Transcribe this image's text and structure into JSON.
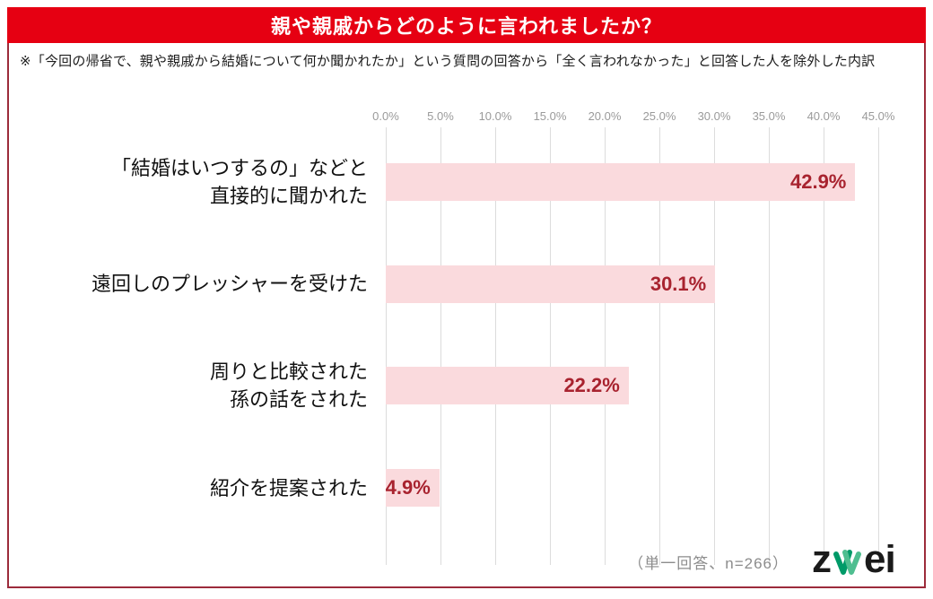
{
  "header": {
    "title": "親や親戚からどのように言われましたか？",
    "bg_color": "#e60012",
    "text_color": "#ffffff"
  },
  "subtitle": "※「今回の帰省で、親や親戚から結婚について何か聞かれたか」という質問の回答から「全く言われなかった」と回答した人を除外した内訳",
  "chart_data": {
    "type": "bar",
    "orientation": "horizontal",
    "title": "親や親戚からどのように言われましたか？",
    "categories": [
      [
        "「結婚はいつするの」などと",
        "直接的に聞かれた"
      ],
      [
        "遠回しのプレッシャーを受けた"
      ],
      [
        "周りと比較された",
        "孫の話をされた"
      ],
      [
        "紹介を提案された"
      ]
    ],
    "values": [
      42.9,
      30.1,
      22.2,
      4.9
    ],
    "value_labels": [
      "42.9%",
      "30.1%",
      "22.2%",
      "4.9%"
    ],
    "x_ticks": [
      "0.0%",
      "5.0%",
      "10.0%",
      "15.0%",
      "20.0%",
      "25.0%",
      "30.0%",
      "35.0%",
      "40.0%",
      "45.0%"
    ],
    "xlim": [
      0,
      45
    ],
    "grid": true,
    "legend": false,
    "bar_color": "#fadadd",
    "value_label_color": "#a8232f",
    "gridline_color": "#dcdcdc",
    "tick_label_color": "#9a9a9a"
  },
  "footer": {
    "note": "（単一回答、n=266）",
    "logo": {
      "name": "zwei",
      "text_left": "z",
      "text_right": "ei",
      "letter_color": "#1a1a1a",
      "heart_w_color_dark": "#009a68",
      "heart_w_color_light": "#4fbe90"
    }
  },
  "frame": {
    "border_color": "#9c2b3b",
    "background": "#ffffff"
  }
}
